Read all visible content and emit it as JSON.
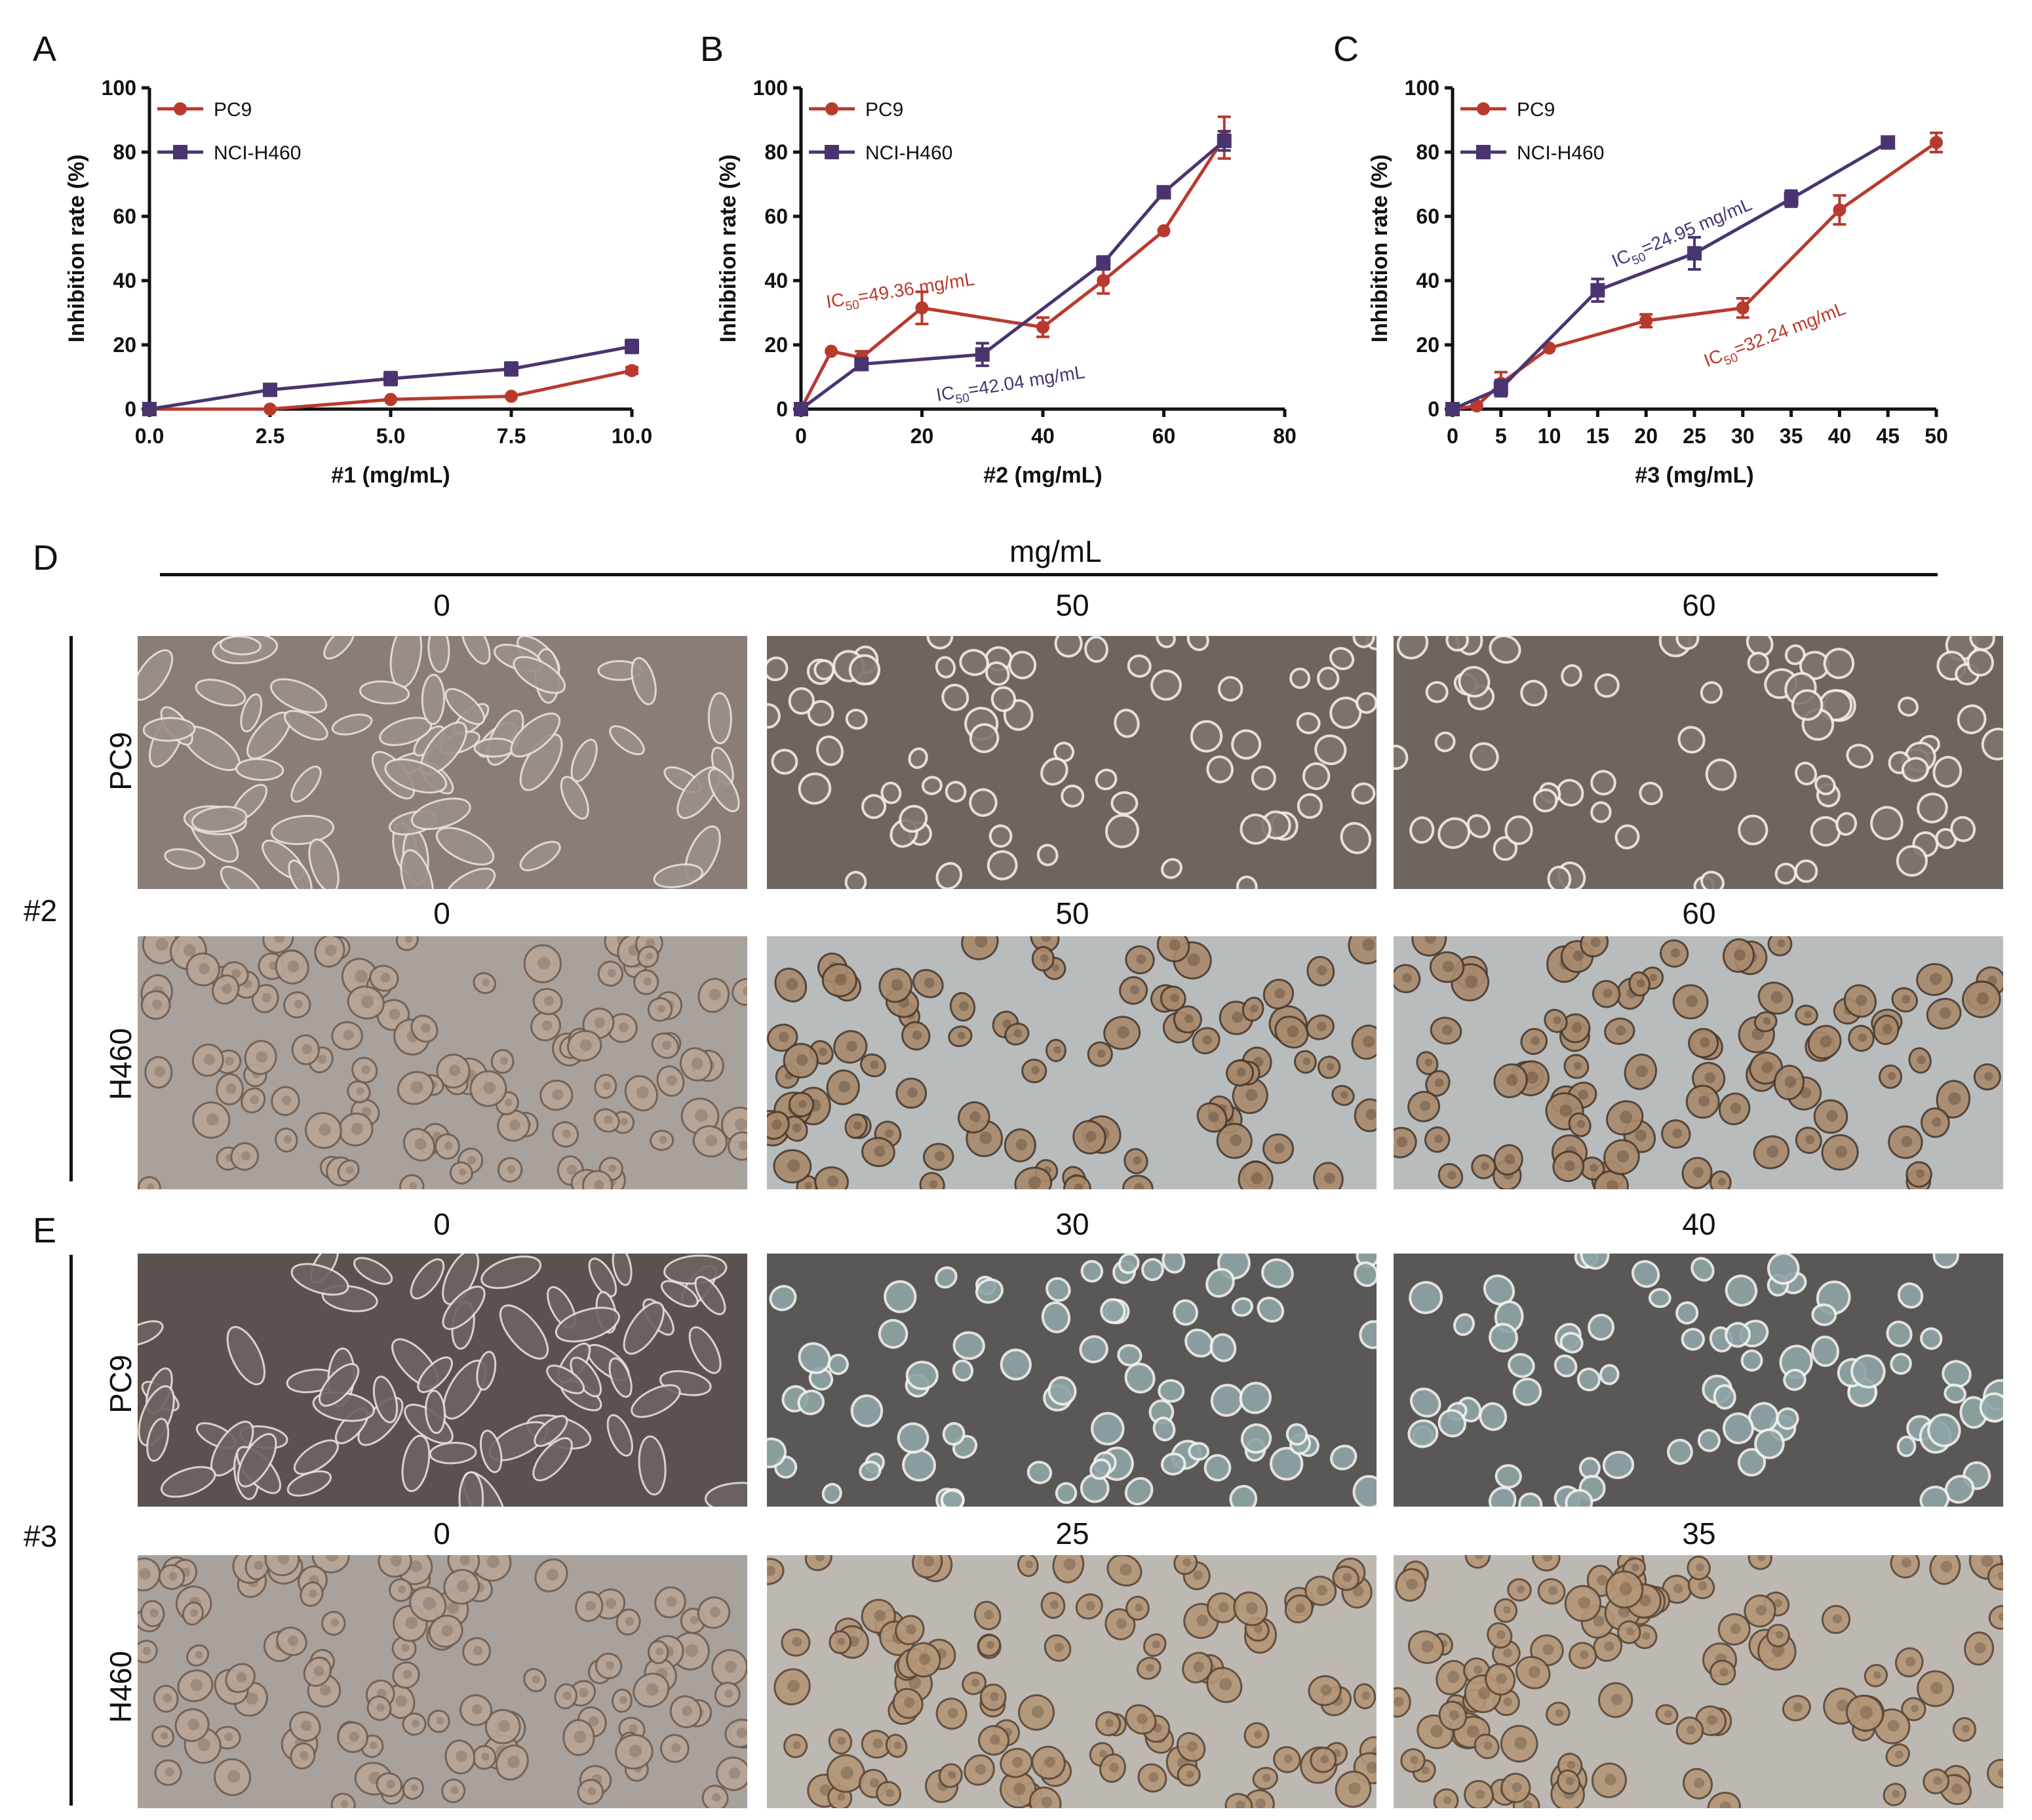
{
  "panels": {
    "A": "A",
    "B": "B",
    "C": "C",
    "D": "D",
    "E": "E"
  },
  "chart_data": [
    {
      "type": "line",
      "panel": "A",
      "xlabel": "#1 (mg/mL)",
      "ylabel": "Inhibition rate (%)",
      "xlim": [
        0,
        10
      ],
      "ylim": [
        0,
        100
      ],
      "xticks": [
        "0.0",
        "2.5",
        "5.0",
        "7.5",
        "10.0"
      ],
      "yticks": [
        "0",
        "20",
        "40",
        "60",
        "80",
        "100"
      ],
      "legend": "top-left",
      "series": [
        {
          "name": "PC9",
          "color": "#b83a2e",
          "marker": "circle",
          "x": [
            0,
            2.5,
            5,
            7.5,
            10
          ],
          "y": [
            0,
            0,
            3,
            4,
            12
          ],
          "err": [
            0,
            0,
            0.5,
            0.5,
            1
          ]
        },
        {
          "name": "NCI-H460",
          "color": "#4a3470",
          "marker": "square",
          "x": [
            0,
            2.5,
            5,
            7.5,
            10
          ],
          "y": [
            0,
            6,
            9.5,
            12.5,
            19.5
          ],
          "err": [
            0,
            0.5,
            2,
            2,
            2
          ]
        }
      ],
      "annotations": []
    },
    {
      "type": "line",
      "panel": "B",
      "xlabel": "#2 (mg/mL)",
      "ylabel": "Inhibition rate (%)",
      "xlim": [
        0,
        80
      ],
      "ylim": [
        0,
        100
      ],
      "xticks": [
        "0",
        "20",
        "40",
        "60",
        "80"
      ],
      "yticks": [
        "0",
        "20",
        "40",
        "60",
        "80",
        "100"
      ],
      "legend": "top-left",
      "series": [
        {
          "name": "PC9",
          "color": "#b83a2e",
          "marker": "circle",
          "x": [
            0,
            5,
            10,
            20,
            40,
            50,
            60,
            70
          ],
          "y": [
            0,
            18,
            16,
            31.5,
            25.5,
            40,
            55.5,
            84.5
          ],
          "err": [
            0,
            0.5,
            2,
            5,
            3,
            4,
            0.5,
            6.5
          ]
        },
        {
          "name": "NCI-H460",
          "color": "#4a3470",
          "marker": "square",
          "x": [
            0,
            10,
            30,
            50,
            60,
            70
          ],
          "y": [
            0,
            14,
            17,
            45.5,
            67.5,
            83.5
          ],
          "err": [
            0,
            1.5,
            3.5,
            2,
            0.5,
            3
          ]
        }
      ],
      "annotations": [
        {
          "text": "IC50=49.36 mg/mL",
          "color": "#b83a2e"
        },
        {
          "text": "IC50=42.04 mg/mL",
          "color": "#4a3470"
        }
      ]
    },
    {
      "type": "line",
      "panel": "C",
      "xlabel": "#3 (mg/mL)",
      "ylabel": "Inhibition rate (%)",
      "xlim": [
        0,
        50
      ],
      "ylim": [
        0,
        100
      ],
      "xticks": [
        "0",
        "5",
        "10",
        "15",
        "20",
        "25",
        "30",
        "35",
        "40",
        "45",
        "50"
      ],
      "yticks": [
        "0",
        "20",
        "40",
        "60",
        "80",
        "100"
      ],
      "legend": "top-left",
      "series": [
        {
          "name": "PC9",
          "color": "#b83a2e",
          "marker": "circle",
          "x": [
            0,
            2.5,
            5,
            10,
            20,
            30,
            40,
            50
          ],
          "y": [
            0,
            1,
            8,
            19,
            27.5,
            31.5,
            62,
            83
          ],
          "err": [
            0,
            0.5,
            3.5,
            0.5,
            2,
            3,
            4.5,
            3
          ]
        },
        {
          "name": "NCI-H460",
          "color": "#4a3470",
          "marker": "square",
          "x": [
            0,
            5,
            15,
            25,
            35,
            45
          ],
          "y": [
            0,
            6.5,
            37,
            48.5,
            65.5,
            83
          ],
          "err": [
            0,
            2.5,
            3.5,
            5,
            2.5,
            0.5
          ]
        }
      ],
      "annotations": [
        {
          "text": "IC50=24.95 mg/mL",
          "color": "#4a3470"
        },
        {
          "text": "IC50=32.24 mg/mL",
          "color": "#b83a2e"
        }
      ]
    }
  ],
  "micrographs": {
    "unit_label": "mg/mL",
    "groups": [
      {
        "label": "#2",
        "rows": [
          {
            "cell_line": "PC9",
            "concentrations": [
              "0",
              "50",
              "60"
            ]
          },
          {
            "cell_line": "H460",
            "concentrations": [
              "0",
              "50",
              "60"
            ]
          }
        ]
      },
      {
        "label": "#3",
        "rows": [
          {
            "cell_line": "PC9",
            "concentrations": [
              "0",
              "30",
              "40"
            ]
          },
          {
            "cell_line": "H460",
            "concentrations": [
              "0",
              "25",
              "35"
            ]
          }
        ]
      }
    ]
  }
}
